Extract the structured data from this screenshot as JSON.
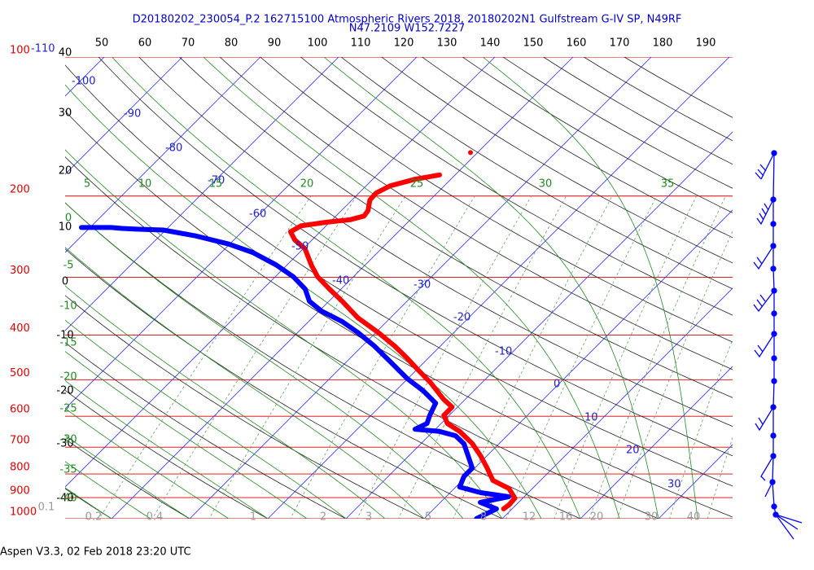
{
  "chart_data": {
    "type": "skew-t",
    "title": "D20180202_230054_P.2 162715100 Atmospheric Rivers 2018, 20180202N1 Gulfstream G-IV SP, N49RF",
    "subtitle": "N47.2109 W152.7227",
    "footer": "Aspen V3.3, 02 Feb 2018  23:20 UTC",
    "pressure_ticks": [
      100,
      200,
      300,
      400,
      500,
      600,
      700,
      800,
      900,
      1000
    ],
    "isotherms": [
      -110,
      -100,
      -90,
      -80,
      -70,
      -60,
      -50,
      -40,
      -30,
      -20,
      -10,
      0,
      10,
      20,
      30
    ],
    "dry_adiabats_left": [
      40,
      30,
      20,
      10,
      0,
      -10,
      -20,
      -30,
      -40
    ],
    "dry_adiabats_top": [
      50,
      60,
      70,
      80,
      90,
      100,
      110,
      120,
      130,
      140,
      150,
      160,
      170,
      180,
      190
    ],
    "moist_adiabats_top": [
      5,
      10,
      15,
      20,
      25,
      30,
      35
    ],
    "moist_adiabats_left": [
      0,
      -5,
      -10,
      -15,
      -20,
      -25,
      -30,
      -35,
      -40
    ],
    "mixing_ratios": [
      0.1,
      0.2,
      0.4,
      1,
      2,
      3,
      5,
      8,
      12,
      16,
      20,
      30,
      40
    ],
    "series": [
      {
        "color": "#ff0000",
        "pressure": [
          180,
          184,
          190,
          197,
          204,
          215,
          221,
          225,
          228,
          232,
          239,
          249,
          260,
          282,
          299,
          318,
          338,
          367,
          395,
          423,
          449,
          478,
          508,
          551,
          573,
          597,
          622,
          647,
          688,
          731,
          777,
          826,
          860,
          903,
          933,
          952
        ],
        "values": [
          -42.0,
          -44.6,
          -46.9,
          -47.8,
          -47.7,
          -46.6,
          -46.4,
          -47.7,
          -50.5,
          -53.2,
          -53.8,
          -52.2,
          -49.8,
          -46.9,
          -44.6,
          -41.5,
          -38.3,
          -34.2,
          -29.7,
          -25.8,
          -22.7,
          -19.6,
          -16.5,
          -12.8,
          -10.7,
          -10.7,
          -9.2,
          -6.6,
          -3.4,
          -0.8,
          1.6,
          3.9,
          7.0,
          9.0,
          9.1,
          8.9
        ]
      },
      {
        "color": "#0000ff",
        "pressure": [
          234,
          234,
          234,
          235,
          236,
          237,
          244,
          254,
          265,
          282,
          299,
          318,
          338,
          355,
          374,
          395,
          423,
          458,
          497,
          528,
          562,
          597,
          622,
          640,
          647,
          661,
          688,
          731,
          777,
          810,
          854,
          878,
          896,
          922,
          952,
          1000
        ],
        "values": [
          -81.1,
          -79.1,
          -77.3,
          -75.8,
          -73.6,
          -70.3,
          -65.4,
          -60.2,
          -56.0,
          -51.4,
          -47.7,
          -44.6,
          -42.5,
          -39.7,
          -35.7,
          -32.3,
          -28.4,
          -24.3,
          -20.1,
          -16.5,
          -13.3,
          -12.5,
          -11.8,
          -12.6,
          -9.2,
          -6.6,
          -4.5,
          -2.4,
          -0.3,
          -0.3,
          0.5,
          3.9,
          8.0,
          5.1,
          8.0,
          6.7
        ]
      },
      {
        "color": "#ff0000",
        "pressure": [
          161
        ],
        "values": [
          -40.9
        ]
      }
    ]
  }
}
